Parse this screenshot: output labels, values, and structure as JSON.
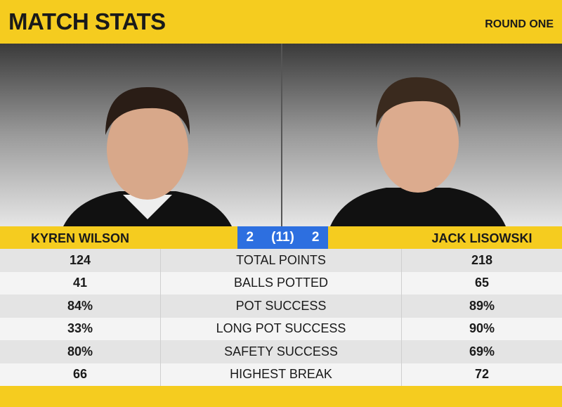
{
  "header": {
    "title": "MATCH STATS",
    "round": "ROUND ONE"
  },
  "players": {
    "left": "KYREN WILSON",
    "right": "JACK LISOWSKI"
  },
  "score": {
    "left": "2",
    "frames": "(11)",
    "right": "2"
  },
  "table": {
    "rows": [
      [
        "124",
        "TOTAL POINTS",
        "218"
      ],
      [
        "41",
        "BALLS POTTED",
        "65"
      ],
      [
        "84%",
        "POT SUCCESS",
        "89%"
      ],
      [
        "33%",
        "LONG POT SUCCESS",
        "90%"
      ],
      [
        "80%",
        "SAFETY SUCCESS",
        "69%"
      ],
      [
        "66",
        "HIGHEST BREAK",
        "72"
      ]
    ]
  }
}
